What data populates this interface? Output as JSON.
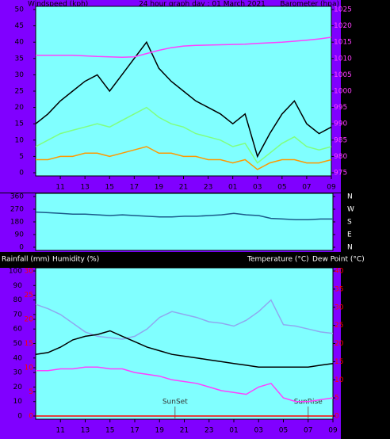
{
  "chart_data": [
    {
      "type": "line",
      "title": "24 hour graph day : 01 March 2021",
      "y_label": "Windspeed (kph)",
      "y2_label": "Barometer (hpa)",
      "x": [
        9,
        10,
        11,
        12,
        13,
        14,
        15,
        16,
        17,
        18,
        19,
        20,
        21,
        22,
        23,
        24,
        25,
        26,
        27,
        28,
        29,
        30,
        31,
        32,
        33
      ],
      "xlim": [
        9,
        33
      ],
      "xticks": [
        11,
        13,
        15,
        17,
        19,
        21,
        23,
        {
          "value": 25,
          "label": "01"
        },
        {
          "value": 27,
          "label": "03"
        },
        {
          "value": 29,
          "label": "05"
        },
        {
          "value": 31,
          "label": "07"
        },
        {
          "value": 33,
          "label": "09"
        }
      ],
      "ylim": [
        0,
        50
      ],
      "yticks": [
        0,
        5,
        10,
        15,
        20,
        25,
        30,
        35,
        40,
        45,
        50
      ],
      "y2lim": [
        975,
        1025
      ],
      "y2ticks": [
        975,
        980,
        985,
        990,
        995,
        1000,
        1005,
        1010,
        1015,
        1020,
        1025
      ],
      "series": [
        {
          "color": "#000000",
          "values": [
            15,
            18,
            22,
            25,
            28,
            30,
            25,
            30,
            35,
            40,
            32,
            28,
            25,
            22,
            20,
            18,
            15,
            18,
            5,
            12,
            18,
            22,
            15,
            12,
            14
          ]
        },
        {
          "color": "#80ff80",
          "values": [
            8,
            10,
            12,
            13,
            14,
            15,
            14,
            16,
            18,
            20,
            17,
            15,
            14,
            12,
            11,
            10,
            8,
            9,
            3,
            6,
            9,
            11,
            8,
            7,
            8
          ]
        },
        {
          "color": "#ff9900",
          "values": [
            4,
            4,
            5,
            5,
            6,
            6,
            5,
            6,
            7,
            8,
            6,
            6,
            5,
            5,
            4,
            4,
            3,
            4,
            1,
            3,
            4,
            4,
            3,
            3,
            4
          ]
        },
        {
          "color": "#ff40ff",
          "axis": "y2",
          "values": [
            1011,
            1011,
            1011,
            1011,
            1010.8,
            1010.6,
            1010.5,
            1010.4,
            1010.5,
            1011.5,
            1012.5,
            1013.3,
            1013.8,
            1014,
            1014.1,
            1014.2,
            1014.3,
            1014.4,
            1014.6,
            1014.8,
            1015,
            1015.3,
            1015.6,
            1016,
            1016.5
          ]
        }
      ]
    },
    {
      "type": "line",
      "x": [
        9,
        10,
        11,
        12,
        13,
        14,
        15,
        16,
        17,
        18,
        19,
        20,
        21,
        22,
        23,
        24,
        25,
        26,
        27,
        28,
        29,
        30,
        31,
        32,
        33
      ],
      "xlim": [
        9,
        33
      ],
      "ylim": [
        0,
        360
      ],
      "yticks": [
        0,
        90,
        180,
        270,
        360
      ],
      "y2lim": [
        0,
        360
      ],
      "y2ticks": [
        {
          "value": 0,
          "label": "N"
        },
        {
          "value": 90,
          "label": "E"
        },
        {
          "value": 180,
          "label": "S"
        },
        {
          "value": 270,
          "label": "W"
        },
        {
          "value": 360,
          "label": "N"
        }
      ],
      "series": [
        {
          "color": "#1a5a8a",
          "values": [
            250,
            245,
            240,
            235,
            235,
            230,
            225,
            230,
            225,
            220,
            215,
            215,
            220,
            220,
            225,
            230,
            240,
            230,
            225,
            205,
            200,
            195,
            195,
            200,
            200
          ]
        }
      ]
    },
    {
      "type": "line",
      "y3_label": "Rainfall (mm)",
      "y_label": "Humidity (%)",
      "y2_label": "Temperature (°C)",
      "y2_label2": "Dew Point (°C)",
      "x": [
        9,
        10,
        11,
        12,
        13,
        14,
        15,
        16,
        17,
        18,
        19,
        20,
        21,
        22,
        23,
        24,
        25,
        26,
        27,
        28,
        29,
        30,
        31,
        32,
        33
      ],
      "xlim": [
        9,
        33
      ],
      "xticks": [
        11,
        13,
        15,
        17,
        19,
        21,
        23,
        {
          "value": 25,
          "label": "01"
        },
        {
          "value": 27,
          "label": "03"
        },
        {
          "value": 29,
          "label": "05"
        },
        {
          "value": 31,
          "label": "07"
        },
        {
          "value": 33,
          "label": "09"
        }
      ],
      "ylim": [
        0,
        100
      ],
      "yticks": [
        0,
        10,
        20,
        30,
        40,
        50,
        60,
        70,
        80,
        90,
        100
      ],
      "y2lim": [
        0,
        40
      ],
      "y2ticks": [
        0,
        5,
        10,
        15,
        20,
        25,
        30,
        35,
        40
      ],
      "y3lim": [
        0,
        30
      ],
      "y3ticks": [
        0,
        5,
        10,
        15,
        20,
        25,
        30
      ],
      "annotations": [
        {
          "text": "SunSet",
          "x": 20.25
        },
        {
          "text": "SunRise",
          "x": 31
        }
      ],
      "series": [
        {
          "color": "#8fa8f0",
          "values": [
            77,
            74,
            70,
            64,
            58,
            55,
            54,
            53,
            55,
            60,
            68,
            72,
            70,
            68,
            65,
            64,
            62,
            66,
            72,
            80,
            63,
            62,
            60,
            58,
            57
          ]
        },
        {
          "color": "#000000",
          "axis": "y2",
          "values": [
            17,
            17.5,
            19,
            21,
            22,
            22.5,
            23.5,
            22,
            20.5,
            19,
            18,
            17,
            16.5,
            16,
            15.5,
            15,
            14.5,
            14,
            13.5,
            13.5,
            13.5,
            13.5,
            13.5,
            14,
            14.5
          ]
        },
        {
          "color": "#ff40ff",
          "axis": "y2",
          "values": [
            12.5,
            12.5,
            13,
            13,
            13.5,
            13.5,
            13,
            13,
            12,
            11.5,
            11,
            10,
            9.5,
            9,
            8,
            7,
            6.5,
            6,
            8,
            9,
            5,
            4,
            4,
            4.5,
            5
          ]
        },
        {
          "color": "#ff0000",
          "axis": "y3",
          "values": [
            0,
            0,
            0,
            0,
            0,
            0,
            0,
            0,
            0,
            0,
            0,
            0,
            0,
            0,
            0,
            0,
            0,
            0,
            0,
            0,
            0,
            0,
            0,
            0,
            0
          ]
        }
      ]
    }
  ]
}
